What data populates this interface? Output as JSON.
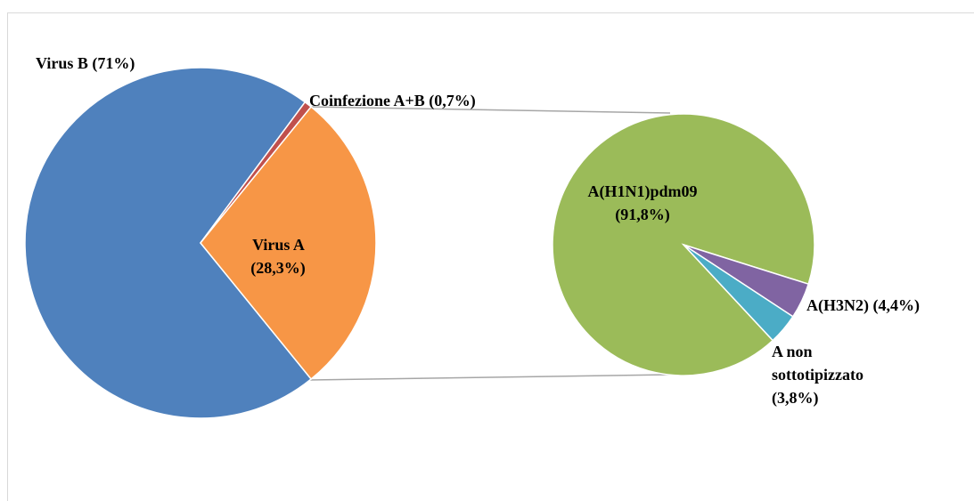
{
  "chart_data": [
    {
      "type": "pie",
      "categories": [
        "Virus B",
        "Coinfezione A+B",
        "Virus A"
      ],
      "values": [
        71,
        0.7,
        28.3
      ],
      "value_labels": [
        "(71%)",
        "(0,7%)",
        "(28,3%)"
      ],
      "colors": [
        "#4f81bd",
        "#c0504d",
        "#f79646"
      ]
    },
    {
      "type": "pie",
      "categories": [
        "A(H1N1)pdm09",
        "A(H3N2)",
        "A non sottotipizzato"
      ],
      "values": [
        91.8,
        4.4,
        3.8
      ],
      "value_labels": [
        "(91,8%)",
        "(4,4%)",
        "(3,8%)"
      ],
      "colors": [
        "#9bbb59",
        "#8064a2",
        "#4bacc6"
      ]
    }
  ]
}
